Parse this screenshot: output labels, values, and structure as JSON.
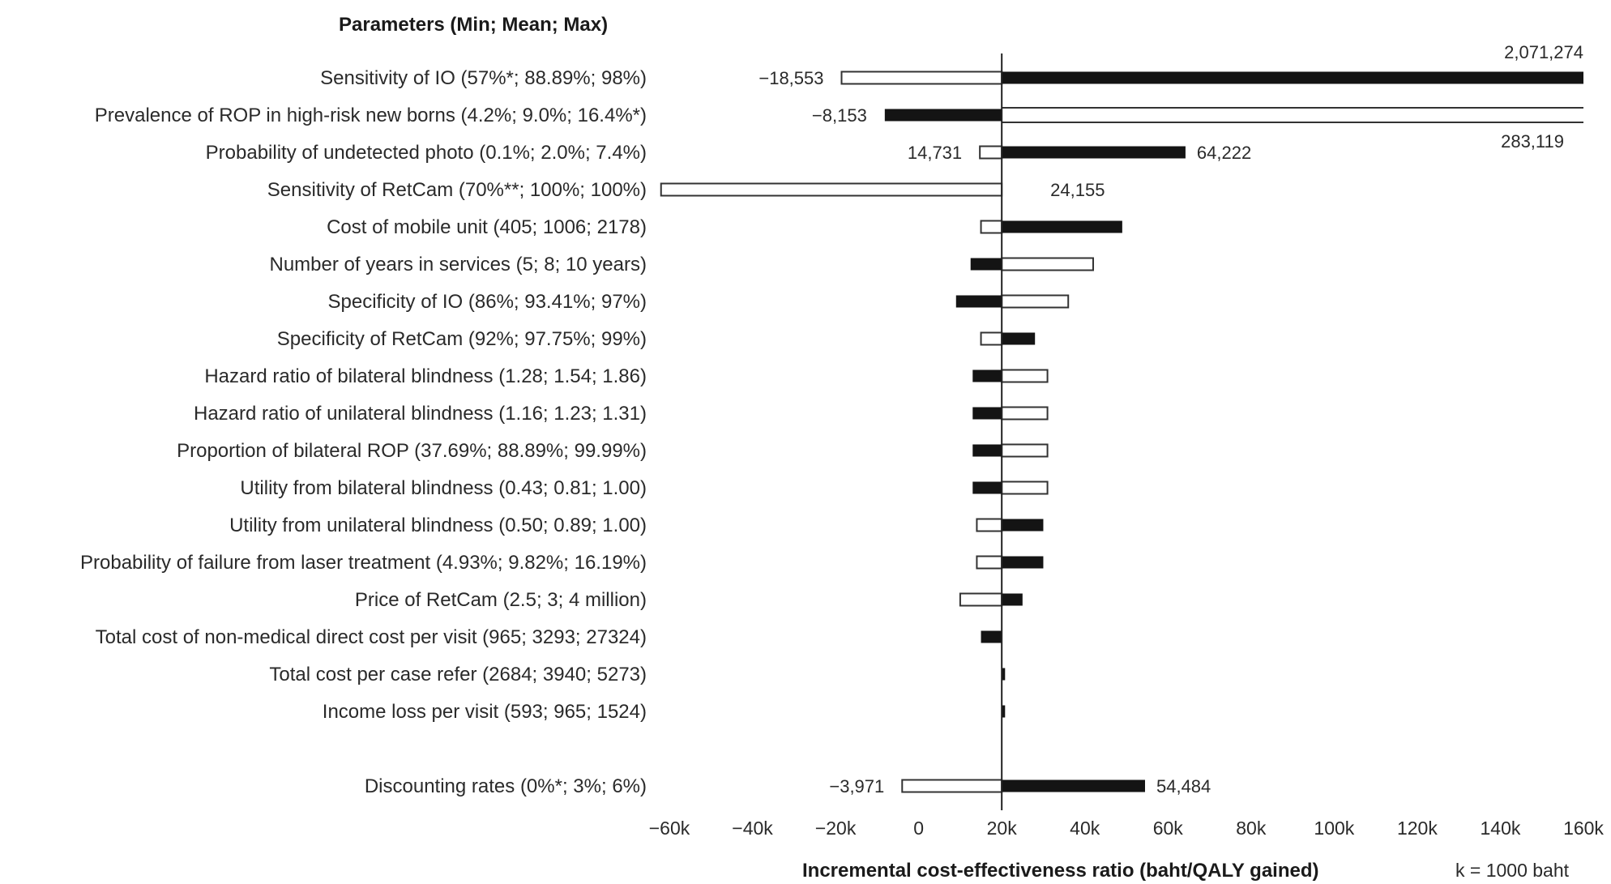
{
  "chart_data": {
    "type": "tornado",
    "title": "Parameters (Min; Mean; Max)",
    "xlabel": "Incremental cost-effectiveness ratio (baht/QALY gained)",
    "unit_note": "k = 1000 baht",
    "xlim": [
      -60000,
      160000
    ],
    "base_value": 20000,
    "ticks": [
      {
        "value": -60000,
        "label": "−60k"
      },
      {
        "value": -40000,
        "label": "−40k"
      },
      {
        "value": -20000,
        "label": "−20k"
      },
      {
        "value": 0,
        "label": "0"
      },
      {
        "value": 20000,
        "label": "20k"
      },
      {
        "value": 40000,
        "label": "40k"
      },
      {
        "value": 60000,
        "label": "60k"
      },
      {
        "value": 80000,
        "label": "80k"
      },
      {
        "value": 100000,
        "label": "100k"
      },
      {
        "value": 120000,
        "label": "120k"
      },
      {
        "value": 140000,
        "label": "140k"
      },
      {
        "value": 160000,
        "label": "160k"
      }
    ],
    "bars": [
      {
        "label": "Sensitivity of IO  (57%*; 88.89%; 98%)",
        "open": -18553,
        "filled": 2071274,
        "open_label": "−18,553",
        "filled_label": "2,071,274",
        "filled_label_pos": "top-right"
      },
      {
        "label": "Prevalence of ROP in high-risk new borns (4.2%; 9.0%; 16.4%*)",
        "open": 283119,
        "filled": -8153,
        "open_label": "283,119",
        "filled_label": "−8,153",
        "open_label_pos": "bottom-right",
        "open_style": "double-line"
      },
      {
        "label": "Probability of undetected photo (0.1%; 2.0%; 7.4%)",
        "open": 14731,
        "filled": 64222,
        "open_label": "14,731",
        "filled_label": "64,222"
      },
      {
        "label": "Sensitivity of RetCam (70%**; 100%; 100%)",
        "open": -62000,
        "filled": null,
        "open_label": null,
        "filled_label": "24,155",
        "filled_label_pos": "base-right"
      },
      {
        "label": "Cost of mobile unit (405; 1006; 2178)",
        "open": 15000,
        "filled": 49000
      },
      {
        "label": "Number of years in services (5; 8; 10 years)",
        "open": 42000,
        "filled": 12500
      },
      {
        "label": "Specificity of IO (86%; 93.41%; 97%)",
        "open": 36000,
        "filled": 9000
      },
      {
        "label": "Specificity of RetCam (92%; 97.75%; 99%)",
        "open": 15000,
        "filled": 28000
      },
      {
        "label": "Hazard ratio of bilateral blindness (1.28; 1.54; 1.86)",
        "open": 31000,
        "filled": 13000
      },
      {
        "label": "Hazard ratio of unilateral blindness (1.16; 1.23; 1.31)",
        "open": 31000,
        "filled": 13000
      },
      {
        "label": "Proportion of bilateral ROP (37.69%; 88.89%; 99.99%)",
        "open": 31000,
        "filled": 13000
      },
      {
        "label": "Utility from bilateral blindness (0.43; 0.81; 1.00)",
        "open": 31000,
        "filled": 13000
      },
      {
        "label": "Utility from unilateral blindness (0.50; 0.89; 1.00)",
        "open": 14000,
        "filled": 30000
      },
      {
        "label": "Probability of failure from laser treatment  (4.93%; 9.82%; 16.19%)",
        "open": 14000,
        "filled": 30000
      },
      {
        "label": "Price of RetCam (2.5; 3; 4 million)",
        "open": 10000,
        "filled": 25000
      },
      {
        "label": "Total cost of non-medical direct cost per visit (965; 3293; 27324)",
        "open": null,
        "filled": 15000
      },
      {
        "label": "Total cost per case refer (2684; 3940; 5273)",
        "open": null,
        "filled": 20800
      },
      {
        "label": "Income loss per visit  (593; 965; 1524)",
        "open": null,
        "filled": 20800
      },
      {
        "label": "Discounting rates (0%*; 3%; 6%)",
        "open": -3971,
        "filled": 54484,
        "open_label": "−3,971",
        "filled_label": "54,484",
        "gap_before": true
      }
    ]
  }
}
